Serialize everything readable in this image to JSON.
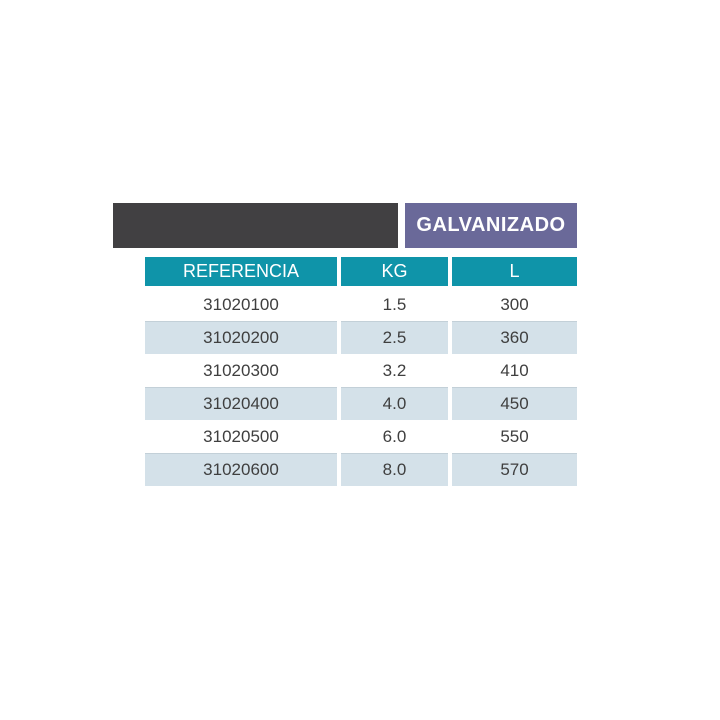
{
  "banner": {
    "title": "GALVANIZADO",
    "dark_block_color": "#414042",
    "accent_color": "#6a6999"
  },
  "table": {
    "header_color": "#0f94a9",
    "stripe_color": "#d4e1e9",
    "text_color": "#3f3f3f",
    "columns": [
      "REFERENCIA",
      "KG",
      "L"
    ],
    "rows": [
      [
        "31020100",
        "1.5",
        "300"
      ],
      [
        "31020200",
        "2.5",
        "360"
      ],
      [
        "31020300",
        "3.2",
        "410"
      ],
      [
        "31020400",
        "4.0",
        "450"
      ],
      [
        "31020500",
        "6.0",
        "550"
      ],
      [
        "31020600",
        "8.0",
        "570"
      ]
    ]
  }
}
